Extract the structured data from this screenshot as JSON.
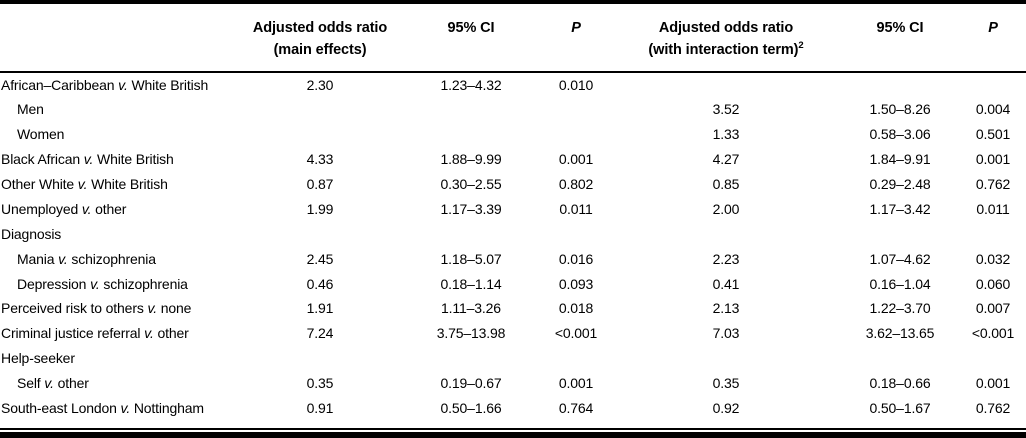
{
  "table": {
    "headers": {
      "label_col": "",
      "aor_main_line1": "Adjusted odds ratio",
      "aor_main_line2": "(main effects)",
      "ci_main": "95% CI",
      "p_main": "P",
      "aor_int_line1": "Adjusted odds ratio",
      "aor_int_line2": "(with interaction term)",
      "aor_int_sup": "2",
      "ci_int": "95% CI",
      "p_int": "P"
    },
    "rows": [
      {
        "label": "African–Caribbean v. White British",
        "indent": false,
        "aor1": "2.30",
        "ci1": "1.23–4.32",
        "p1": "0.010",
        "aor2": "",
        "ci2": "",
        "p2": ""
      },
      {
        "label": "Men",
        "indent": true,
        "aor1": "",
        "ci1": "",
        "p1": "",
        "aor2": "3.52",
        "ci2": "1.50–8.26",
        "p2": "0.004"
      },
      {
        "label": "Women",
        "indent": true,
        "aor1": "",
        "ci1": "",
        "p1": "",
        "aor2": "1.33",
        "ci2": "0.58–3.06",
        "p2": "0.501"
      },
      {
        "label": "Black African v. White British",
        "indent": false,
        "aor1": "4.33",
        "ci1": "1.88–9.99",
        "p1": "0.001",
        "aor2": "4.27",
        "ci2": "1.84–9.91",
        "p2": "0.001"
      },
      {
        "label": "Other White v. White British",
        "indent": false,
        "aor1": "0.87",
        "ci1": "0.30–2.55",
        "p1": "0.802",
        "aor2": "0.85",
        "ci2": "0.29–2.48",
        "p2": "0.762"
      },
      {
        "label": "Unemployed v. other",
        "indent": false,
        "aor1": "1.99",
        "ci1": "1.17–3.39",
        "p1": "0.011",
        "aor2": "2.00",
        "ci2": "1.17–3.42",
        "p2": "0.011"
      },
      {
        "label": "Diagnosis",
        "indent": false,
        "aor1": "",
        "ci1": "",
        "p1": "",
        "aor2": "",
        "ci2": "",
        "p2": ""
      },
      {
        "label": "Mania v. schizophrenia",
        "indent": true,
        "aor1": "2.45",
        "ci1": "1.18–5.07",
        "p1": "0.016",
        "aor2": "2.23",
        "ci2": "1.07–4.62",
        "p2": "0.032"
      },
      {
        "label": "Depression v. schizophrenia",
        "indent": true,
        "aor1": "0.46",
        "ci1": "0.18–1.14",
        "p1": "0.093",
        "aor2": "0.41",
        "ci2": "0.16–1.04",
        "p2": "0.060"
      },
      {
        "label": "Perceived risk to others v. none",
        "indent": false,
        "aor1": "1.91",
        "ci1": "1.11–3.26",
        "p1": "0.018",
        "aor2": "2.13",
        "ci2": "1.22–3.70",
        "p2": "0.007"
      },
      {
        "label": "Criminal justice referral v. other",
        "indent": false,
        "aor1": "7.24",
        "ci1": "3.75–13.98",
        "p1": "<0.001",
        "aor2": "7.03",
        "ci2": "3.62–13.65",
        "p2": "<0.001"
      },
      {
        "label": "Help-seeker",
        "indent": false,
        "aor1": "",
        "ci1": "",
        "p1": "",
        "aor2": "",
        "ci2": "",
        "p2": ""
      },
      {
        "label": "Self v. other",
        "indent": true,
        "aor1": "0.35",
        "ci1": "0.19–0.67",
        "p1": "0.001",
        "aor2": "0.35",
        "ci2": "0.18–0.66",
        "p2": "0.001"
      },
      {
        "label": "South-east London v. Nottingham",
        "indent": false,
        "aor1": "0.91",
        "ci1": "0.50–1.66",
        "p1": "0.764",
        "aor2": "0.92",
        "ci2": "0.50–1.67",
        "p2": "0.762"
      }
    ]
  }
}
